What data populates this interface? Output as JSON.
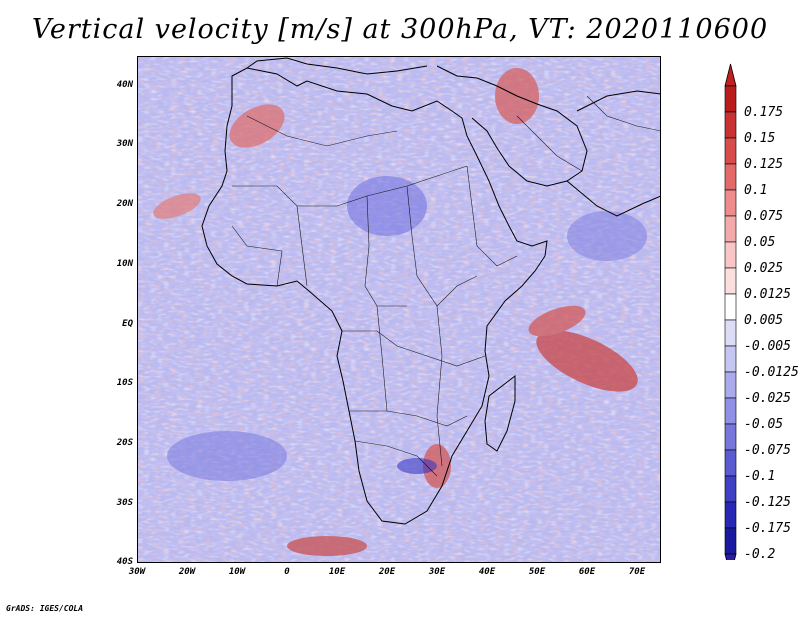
{
  "title": "Vertical velocity [m/s] at 300hPa, VT: 2020110600",
  "footer": "GrADS: IGES/COLA",
  "lat_ticks": [
    "40N",
    "30N",
    "20N",
    "10N",
    "EQ",
    "10S",
    "20S",
    "30S",
    "40S"
  ],
  "lon_ticks": [
    "30W",
    "20W",
    "10W",
    "0",
    "10E",
    "20E",
    "30E",
    "40E",
    "50E",
    "60E",
    "70E"
  ],
  "colorbar": {
    "labels": [
      "0.175",
      "0.15",
      "0.125",
      "0.1",
      "0.075",
      "0.05",
      "0.025",
      "0.0125",
      "0.005",
      "-0.005",
      "-0.0125",
      "-0.025",
      "-0.05",
      "-0.075",
      "-0.1",
      "-0.125",
      "-0.175",
      "-0.2"
    ],
    "colors": [
      "#b81c1c",
      "#c83232",
      "#d84c4c",
      "#e46a6a",
      "#ee8c8c",
      "#f4aaaa",
      "#f8c6c6",
      "#fbdede",
      "#ffffff",
      "#dcdcf6",
      "#c6c6f2",
      "#aaaaec",
      "#9090e6",
      "#7676dc",
      "#5c5cd2",
      "#4040c4",
      "#2828b4",
      "#1a1aa0"
    ],
    "arrow_top": "#c02020",
    "arrow_bottom": "#2a1aa8"
  },
  "map": {
    "region": "Africa",
    "lon_range": [
      -30,
      75
    ],
    "lat_range": [
      -40,
      45
    ],
    "field": "vertical velocity",
    "units": "m/s",
    "level": "300hPa"
  }
}
